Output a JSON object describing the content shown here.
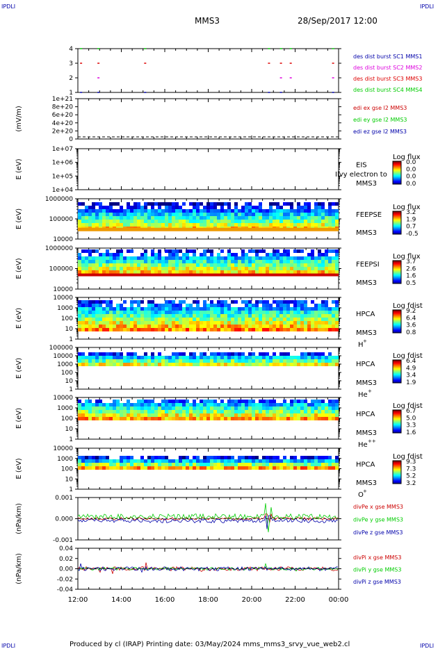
{
  "corner_label": "IPDLI",
  "header": {
    "spacecraft": "MMS3",
    "datetime": "28/Sep/2017 12:00"
  },
  "footer": {
    "text": "Produced by cl (IRAP)   Printing date: 03/May/2024   mms_mms3_srvy_vue_web2.cl"
  },
  "colors": {
    "mms1": "#0000aa",
    "mms2": "#dd00dd",
    "mms3": "#dd0000",
    "mms4": "#00cc00",
    "x": "#cc0000",
    "y": "#00cc00",
    "z": "#0000aa"
  },
  "chart_data": {
    "type": "multi-panel-timeseries",
    "x_ticks": [
      "12:00",
      "14:00",
      "16:00",
      "18:00",
      "20:00",
      "22:00",
      "00:00"
    ],
    "x_range_hours": [
      12,
      24
    ],
    "panels": [
      {
        "id": "burst",
        "type": "segments",
        "ylabel": "",
        "yticks": [
          "1",
          "2",
          "3",
          "4"
        ],
        "legend": [
          "des dist burst SC1 MMS1",
          "des dist burst SC2 MMS2",
          "des dist burst SC3 MMS3",
          "des dist burst SC4 MMS4"
        ],
        "legend_colors": [
          "#0000aa",
          "#dd00dd",
          "#dd0000",
          "#00cc00"
        ],
        "segments_hours": [
          [
            12.1,
            12.2
          ],
          [
            12.9,
            13.0
          ],
          [
            15.05,
            15.15
          ],
          [
            20.75,
            21.0
          ],
          [
            21.3,
            21.4
          ],
          [
            21.75,
            21.95
          ],
          [
            23.7,
            23.95
          ]
        ]
      },
      {
        "id": "edi",
        "type": "line",
        "ylabel": "(mV/m)",
        "yticks": [
          "0",
          "2e+20",
          "4e+20",
          "6e+20",
          "8e+20",
          "1e+21"
        ],
        "ylim": [
          0,
          1e+21
        ],
        "legend": [
          "edi ex gse l2 MMS3",
          "edi ey gse l2 MMS3",
          "edi ez gse l2 MMS3"
        ],
        "legend_colors": [
          "#cc0000",
          "#00cc00",
          "#0000aa"
        ]
      },
      {
        "id": "eis",
        "type": "spectrogram",
        "ylabel": "E (eV)",
        "yticks": [
          "1e+04",
          "1e+05",
          "1e+06",
          "1e+07"
        ],
        "labels": [
          "EIS",
          "MMS3"
        ],
        "overlay": "Ilvy electron to",
        "cbar_title": "Log flux",
        "cbar_ticks": [
          "0.0",
          "0.0",
          "0.0",
          "0.0"
        ]
      },
      {
        "id": "feeps_e",
        "type": "spectrogram",
        "ylabel": "E (eV)",
        "yticks": [
          "10000",
          "100000",
          "1000000"
        ],
        "labels": [
          "FEEPSE",
          "MMS3"
        ],
        "cbar_title": "Log flux",
        "cbar_ticks": [
          "3.2",
          "1.9",
          "0.7",
          "-0.5"
        ]
      },
      {
        "id": "feeps_i",
        "type": "spectrogram",
        "ylabel": "E (eV)",
        "yticks": [
          "10000",
          "100000",
          "1000000"
        ],
        "labels": [
          "FEEPSI",
          "MMS3"
        ],
        "cbar_title": "Log flux",
        "cbar_ticks": [
          "3.7",
          "2.6",
          "1.6",
          "0.5"
        ]
      },
      {
        "id": "hpca_h",
        "type": "spectrogram",
        "ylabel": "E (eV)",
        "yticks": [
          "1",
          "10",
          "100",
          "1000",
          "10000"
        ],
        "labels": [
          "HPCA",
          "MMS3",
          "H",
          "+"
        ],
        "cbar_title": "Log fdist",
        "cbar_ticks": [
          "9.2",
          "6.4",
          "3.6",
          "0.8"
        ]
      },
      {
        "id": "hpca_he",
        "type": "spectrogram",
        "ylabel": "E (eV)",
        "yticks": [
          "1",
          "10",
          "100",
          "1000",
          "10000",
          "100000"
        ],
        "labels": [
          "HPCA",
          "MMS3",
          "He",
          "+"
        ],
        "cbar_title": "Log fdist",
        "cbar_ticks": [
          "6.4",
          "4.9",
          "3.4",
          "1.9"
        ]
      },
      {
        "id": "hpca_hepp",
        "type": "spectrogram",
        "ylabel": "E (eV)",
        "yticks": [
          "1",
          "10",
          "100",
          "1000",
          "10000"
        ],
        "labels": [
          "HPCA",
          "MMS3",
          "He",
          "++"
        ],
        "cbar_title": "Log fdist",
        "cbar_ticks": [
          "6.7",
          "5.0",
          "3.3",
          "1.6"
        ]
      },
      {
        "id": "hpca_o",
        "type": "spectrogram",
        "ylabel": "E (eV)",
        "yticks": [
          "1",
          "10",
          "100",
          "1000",
          "10000"
        ],
        "labels": [
          "HPCA",
          "MMS3",
          "O",
          "+"
        ],
        "cbar_title": "Log fdist",
        "cbar_ticks": [
          "9.3",
          "7.3",
          "5.2",
          "3.2"
        ]
      },
      {
        "id": "divpe",
        "type": "line",
        "ylabel": "(nPa/km)",
        "yticks": [
          "-0.001",
          "0.000",
          "0.001"
        ],
        "ylim": [
          -0.0015,
          0.0015
        ],
        "legend": [
          "divPe x gse MMS3",
          "divPe y gse MMS3",
          "divPe z gse MMS3"
        ],
        "legend_colors": [
          "#cc0000",
          "#00cc00",
          "#0000aa"
        ]
      },
      {
        "id": "divpi",
        "type": "line",
        "ylabel": "(nPa/km)",
        "yticks": [
          "-0.04",
          "-0.02",
          "0.00",
          "0.02",
          "0.04"
        ],
        "ylim": [
          -0.05,
          0.05
        ],
        "legend": [
          "divPi x gse MMS3",
          "divPi y gse MMS3",
          "divPi z gse MMS3"
        ],
        "legend_colors": [
          "#cc0000",
          "#00cc00",
          "#0000aa"
        ]
      }
    ]
  }
}
